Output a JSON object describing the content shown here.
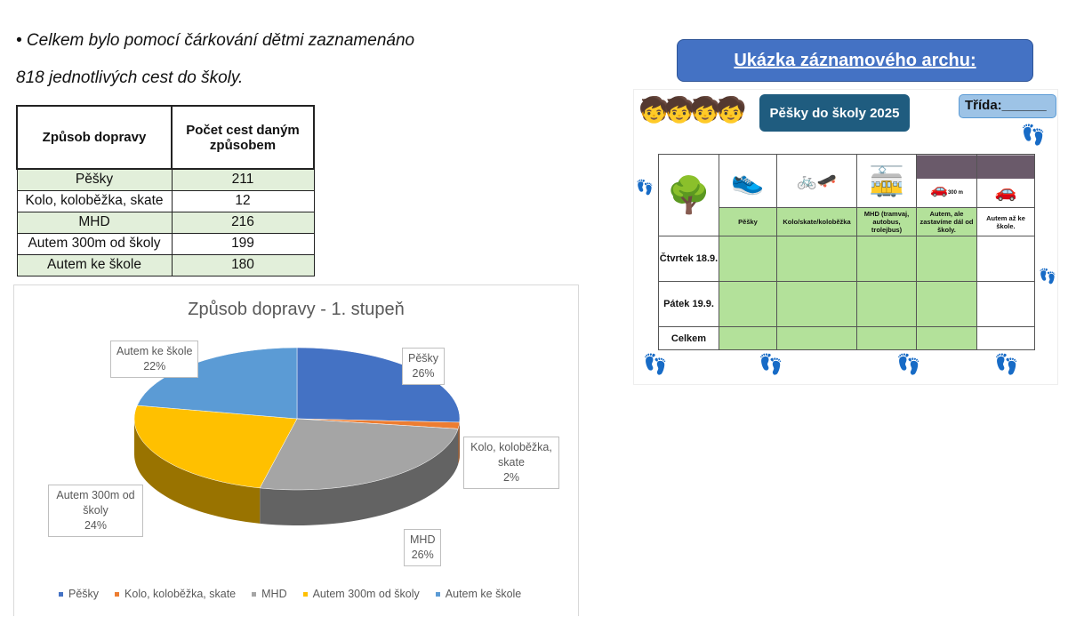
{
  "intro": {
    "line1": "• Celkem bylo pomocí čárkování dětmi zaznamenáno",
    "line2": "818 jednotlivých cest do školy."
  },
  "table": {
    "headers": [
      "Způsob dopravy",
      "Počet cest daným způsobem"
    ],
    "rows": [
      [
        "Pěšky",
        "211"
      ],
      [
        "Kolo, koloběžka, skate",
        "12"
      ],
      [
        "MHD",
        "216"
      ],
      [
        "Autem 300m od školy",
        "199"
      ],
      [
        "Autem ke škole",
        "180"
      ]
    ]
  },
  "chart_data": {
    "type": "pie",
    "title": "Způsob dopravy - 1. stupeň",
    "legend": "bottom",
    "categories": [
      "Pěšky",
      "Kolo, koloběžka, skate",
      "MHD",
      "Autem 300m od školy",
      "Autem ke škole"
    ],
    "values": [
      211,
      12,
      216,
      199,
      180
    ],
    "labels": [
      [
        "Pěšky",
        "26%"
      ],
      [
        "Kolo, koloběžka, skate",
        "2%"
      ],
      [
        "MHD",
        "26%"
      ],
      [
        "Autem 300m od školy",
        "24%"
      ],
      [
        "Autem ke škole",
        "22%"
      ]
    ],
    "colors": [
      "#4472c4",
      "#ed7d31",
      "#a5a5a5",
      "#ffc000",
      "#5b9bd5"
    ],
    "style": "3d"
  },
  "sample_button": "Ukázka záznamového archu:",
  "sheet": {
    "title": "Pěšky do školy 2025",
    "class_label": "Třída:______",
    "columns": [
      "Pěšky",
      "Kolo/skate/koloběžka",
      "MHD (tramvaj, autobus, trolejbus)",
      "Autem, ale zastavíme dál od školy.",
      "Autem až ke škole."
    ],
    "distance": "300 m",
    "rows": [
      "Čtvrtek 18.9.",
      "Pátek 19.9.",
      "Celkem"
    ]
  }
}
